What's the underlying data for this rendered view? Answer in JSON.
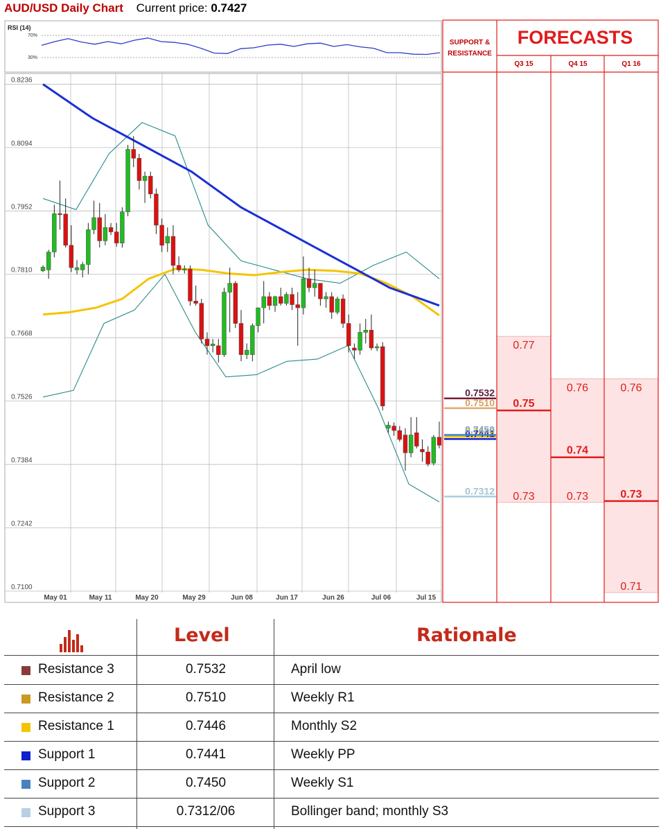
{
  "header": {
    "title": "AUD/USD Daily Chart",
    "price_label": "Current price:",
    "price": "0.7427"
  },
  "rsi": {
    "label": "RSI (14)",
    "levels": [
      "70%",
      "30%"
    ]
  },
  "panel": {
    "sr_title_line1": "SUPPORT &",
    "sr_title_line2": "RESISTANCE",
    "forecasts_title": "FORECASTS",
    "columns": [
      "Q3 15",
      "Q4 15",
      "Q1 16"
    ]
  },
  "colors": {
    "candle_up": "#22bb22",
    "candle_down": "#dd1111",
    "sma_long": "#1a2fd6",
    "sma_mid": "#f5c400",
    "bollinger": "#2a8a8a",
    "forecast_fill": "#fde3e3",
    "forecast_red": "#e11b1b",
    "accent_red": "#c00000"
  },
  "chart_data": {
    "type": "candlestick",
    "title": "AUD/USD Daily Chart",
    "ylim": [
      0.7075,
      0.826
    ],
    "y_ticks": [
      "0.8236",
      "0.8094",
      "0.7952",
      "0.7810",
      "0.7668",
      "0.7526",
      "0.7384",
      "0.7242",
      "0.7100"
    ],
    "x_ticks": [
      "May 01",
      "May 11",
      "May 20",
      "May 29",
      "Jun 08",
      "Jun 17",
      "Jun 26",
      "Jul 06",
      "Jul 15"
    ],
    "candles": [
      {
        "o": 0.7818,
        "h": 0.783,
        "l": 0.7815,
        "c": 0.7826
      },
      {
        "o": 0.782,
        "h": 0.7865,
        "l": 0.78,
        "c": 0.786
      },
      {
        "o": 0.786,
        "h": 0.7966,
        "l": 0.7848,
        "c": 0.7946
      },
      {
        "o": 0.7946,
        "h": 0.802,
        "l": 0.791,
        "c": 0.7945
      },
      {
        "o": 0.7945,
        "h": 0.798,
        "l": 0.787,
        "c": 0.7875
      },
      {
        "o": 0.7875,
        "h": 0.792,
        "l": 0.7815,
        "c": 0.7825
      },
      {
        "o": 0.782,
        "h": 0.7842,
        "l": 0.781,
        "c": 0.7825
      },
      {
        "o": 0.782,
        "h": 0.7838,
        "l": 0.7803,
        "c": 0.7832
      },
      {
        "o": 0.7832,
        "h": 0.7925,
        "l": 0.781,
        "c": 0.791
      },
      {
        "o": 0.791,
        "h": 0.7975,
        "l": 0.79,
        "c": 0.7937
      },
      {
        "o": 0.7937,
        "h": 0.797,
        "l": 0.787,
        "c": 0.7885
      },
      {
        "o": 0.7885,
        "h": 0.7945,
        "l": 0.7875,
        "c": 0.7915
      },
      {
        "o": 0.7915,
        "h": 0.7925,
        "l": 0.7898,
        "c": 0.7905
      },
      {
        "o": 0.7905,
        "h": 0.7925,
        "l": 0.7872,
        "c": 0.788
      },
      {
        "o": 0.788,
        "h": 0.796,
        "l": 0.787,
        "c": 0.795
      },
      {
        "o": 0.795,
        "h": 0.81,
        "l": 0.794,
        "c": 0.809
      },
      {
        "o": 0.809,
        "h": 0.812,
        "l": 0.805,
        "c": 0.807
      },
      {
        "o": 0.807,
        "h": 0.808,
        "l": 0.8,
        "c": 0.802
      },
      {
        "o": 0.802,
        "h": 0.804,
        "l": 0.797,
        "c": 0.803
      },
      {
        "o": 0.803,
        "h": 0.804,
        "l": 0.798,
        "c": 0.799
      },
      {
        "o": 0.799,
        "h": 0.8002,
        "l": 0.79,
        "c": 0.792
      },
      {
        "o": 0.792,
        "h": 0.7935,
        "l": 0.786,
        "c": 0.7875
      },
      {
        "o": 0.788,
        "h": 0.7915,
        "l": 0.786,
        "c": 0.7895
      },
      {
        "o": 0.7895,
        "h": 0.792,
        "l": 0.781,
        "c": 0.783
      },
      {
        "o": 0.783,
        "h": 0.785,
        "l": 0.7815,
        "c": 0.782
      },
      {
        "o": 0.782,
        "h": 0.783,
        "l": 0.7812,
        "c": 0.7822
      },
      {
        "o": 0.7822,
        "h": 0.783,
        "l": 0.774,
        "c": 0.775
      },
      {
        "o": 0.775,
        "h": 0.7785,
        "l": 0.774,
        "c": 0.7745
      },
      {
        "o": 0.7745,
        "h": 0.7755,
        "l": 0.7655,
        "c": 0.7665
      },
      {
        "o": 0.7665,
        "h": 0.768,
        "l": 0.763,
        "c": 0.765
      },
      {
        "o": 0.765,
        "h": 0.7665,
        "l": 0.7635,
        "c": 0.7654
      },
      {
        "o": 0.765,
        "h": 0.7665,
        "l": 0.7612,
        "c": 0.763
      },
      {
        "o": 0.763,
        "h": 0.778,
        "l": 0.7625,
        "c": 0.777
      },
      {
        "o": 0.777,
        "h": 0.7825,
        "l": 0.768,
        "c": 0.779
      },
      {
        "o": 0.779,
        "h": 0.7795,
        "l": 0.769,
        "c": 0.77
      },
      {
        "o": 0.77,
        "h": 0.773,
        "l": 0.7615,
        "c": 0.763
      },
      {
        "o": 0.763,
        "h": 0.7655,
        "l": 0.762,
        "c": 0.764
      },
      {
        "o": 0.763,
        "h": 0.77,
        "l": 0.7615,
        "c": 0.7695
      },
      {
        "o": 0.7695,
        "h": 0.7735,
        "l": 0.768,
        "c": 0.7735
      },
      {
        "o": 0.7735,
        "h": 0.7795,
        "l": 0.77,
        "c": 0.776
      },
      {
        "o": 0.776,
        "h": 0.777,
        "l": 0.773,
        "c": 0.774
      },
      {
        "o": 0.774,
        "h": 0.7762,
        "l": 0.7726,
        "c": 0.776
      },
      {
        "o": 0.776,
        "h": 0.778,
        "l": 0.774,
        "c": 0.7745
      },
      {
        "o": 0.7745,
        "h": 0.777,
        "l": 0.774,
        "c": 0.7765
      },
      {
        "o": 0.7765,
        "h": 0.778,
        "l": 0.773,
        "c": 0.7742
      },
      {
        "o": 0.7742,
        "h": 0.777,
        "l": 0.765,
        "c": 0.7735
      },
      {
        "o": 0.7735,
        "h": 0.785,
        "l": 0.772,
        "c": 0.78
      },
      {
        "o": 0.78,
        "h": 0.7825,
        "l": 0.777,
        "c": 0.778
      },
      {
        "o": 0.778,
        "h": 0.782,
        "l": 0.776,
        "c": 0.779
      },
      {
        "o": 0.779,
        "h": 0.779,
        "l": 0.774,
        "c": 0.7755
      },
      {
        "o": 0.7755,
        "h": 0.777,
        "l": 0.7735,
        "c": 0.776
      },
      {
        "o": 0.776,
        "h": 0.777,
        "l": 0.771,
        "c": 0.7725
      },
      {
        "o": 0.7725,
        "h": 0.776,
        "l": 0.772,
        "c": 0.7755
      },
      {
        "o": 0.7755,
        "h": 0.7765,
        "l": 0.769,
        "c": 0.77
      },
      {
        "o": 0.77,
        "h": 0.772,
        "l": 0.7635,
        "c": 0.765
      },
      {
        "o": 0.7645,
        "h": 0.7655,
        "l": 0.762,
        "c": 0.764
      },
      {
        "o": 0.764,
        "h": 0.77,
        "l": 0.763,
        "c": 0.768
      },
      {
        "o": 0.768,
        "h": 0.771,
        "l": 0.7655,
        "c": 0.7685
      },
      {
        "o": 0.7685,
        "h": 0.772,
        "l": 0.764,
        "c": 0.7645
      },
      {
        "o": 0.7645,
        "h": 0.7655,
        "l": 0.7638,
        "c": 0.7648
      },
      {
        "o": 0.7648,
        "h": 0.7658,
        "l": 0.7505,
        "c": 0.7515
      },
      {
        "o": 0.7465,
        "h": 0.748,
        "l": 0.7455,
        "c": 0.7472
      },
      {
        "o": 0.747,
        "h": 0.7478,
        "l": 0.7448,
        "c": 0.746
      },
      {
        "o": 0.746,
        "h": 0.747,
        "l": 0.7435,
        "c": 0.744
      },
      {
        "o": 0.745,
        "h": 0.7465,
        "l": 0.737,
        "c": 0.741
      },
      {
        "o": 0.741,
        "h": 0.749,
        "l": 0.74,
        "c": 0.745
      },
      {
        "o": 0.7455,
        "h": 0.749,
        "l": 0.742,
        "c": 0.7425
      },
      {
        "o": 0.7418,
        "h": 0.744,
        "l": 0.739,
        "c": 0.7412
      },
      {
        "o": 0.7412,
        "h": 0.7425,
        "l": 0.738,
        "c": 0.7385
      },
      {
        "o": 0.7387,
        "h": 0.745,
        "l": 0.7382,
        "c": 0.7445
      },
      {
        "o": 0.7445,
        "h": 0.748,
        "l": 0.742,
        "c": 0.7427
      }
    ],
    "sma_long": [
      0.8236,
      0.816,
      0.81,
      0.804,
      0.796,
      0.79,
      0.784,
      0.778,
      0.774
    ],
    "sma_mid": [
      0.772,
      0.7725,
      0.7735,
      0.7755,
      0.78,
      0.7822,
      0.782,
      0.7812,
      0.7808,
      0.7815,
      0.782,
      0.7818,
      0.7812,
      0.779,
      0.776,
      0.7718
    ],
    "bollinger_upper": [
      0.798,
      0.7955,
      0.808,
      0.815,
      0.812,
      0.792,
      0.784,
      0.782,
      0.78,
      0.779,
      0.783,
      0.786,
      0.78
    ],
    "bollinger_lower": [
      0.7535,
      0.755,
      0.77,
      0.773,
      0.781,
      0.768,
      0.758,
      0.7585,
      0.7615,
      0.762,
      0.765,
      0.751,
      0.734,
      0.73
    ]
  },
  "rsi_series": [
    0.55,
    0.72,
    0.85,
    0.7,
    0.6,
    0.72,
    0.62,
    0.78,
    0.88,
    0.72,
    0.68,
    0.6,
    0.42,
    0.2,
    0.18,
    0.4,
    0.44,
    0.56,
    0.6,
    0.5,
    0.62,
    0.65,
    0.5,
    0.58,
    0.48,
    0.42,
    0.22,
    0.22,
    0.15,
    0.14,
    0.22
  ],
  "levels": [
    {
      "name": "Resistance 3",
      "value": "0.7532",
      "color": "#7a1d35",
      "label_color": "#5a1a3a"
    },
    {
      "name": "Resistance 2",
      "value": "0.7510",
      "color": "#e0a86a",
      "label_color": "#d4a15e"
    },
    {
      "name": "Resistance 1",
      "value": "0.7446",
      "color": "#f5c400",
      "label_color": "#f5c400"
    },
    {
      "name": "Support 1",
      "value": "0.7441",
      "color": "#1020cc",
      "label_color": "#1020cc"
    },
    {
      "name": "Support 2",
      "value": "0.7450",
      "color": "#3b7fc4",
      "label_color": "#7ba7d7"
    },
    {
      "name": "Support 3",
      "value": "0.7312",
      "color": "#aacde0",
      "label_color": "#9fc6d4"
    }
  ],
  "forecasts": [
    {
      "col": 0,
      "high": "0.77",
      "mid": "0.75",
      "low": "0.73",
      "high_v": 0.7668,
      "mid_v": 0.7505,
      "low_v": 0.7302
    },
    {
      "col": 1,
      "high": "0.76",
      "mid": "0.74",
      "low": "0.73",
      "high_v": 0.7573,
      "mid_v": 0.74,
      "low_v": 0.7302
    },
    {
      "col": 2,
      "high": "0.76",
      "mid": "0.73",
      "low": "0.71",
      "high_v": 0.7573,
      "mid_v": 0.7302,
      "low_v": 0.71
    }
  ],
  "table": {
    "header_level": "Level",
    "header_rationale": "Rationale",
    "rows": [
      {
        "swatch": "#8b3a3a",
        "name": "Resistance 3",
        "level": "0.7532",
        "rationale": "April low"
      },
      {
        "swatch": "#c99a22",
        "name": "Resistance 2",
        "level": "0.7510",
        "rationale": "Weekly R1"
      },
      {
        "swatch": "#f5c400",
        "name": "Resistance 1",
        "level": "0.7446",
        "rationale": "Monthly S2"
      },
      {
        "swatch": "#1020cc",
        "name": "Support 1",
        "level": "0.7441",
        "rationale": "Weekly PP"
      },
      {
        "swatch": "#4a82c0",
        "name": "Support 2",
        "level": "0.7450",
        "rationale": "Weekly S1"
      },
      {
        "swatch": "#b8cfe6",
        "name": "Support 3",
        "level": "0.7312/06",
        "rationale": "Bollinger band; monthly S3"
      }
    ]
  }
}
